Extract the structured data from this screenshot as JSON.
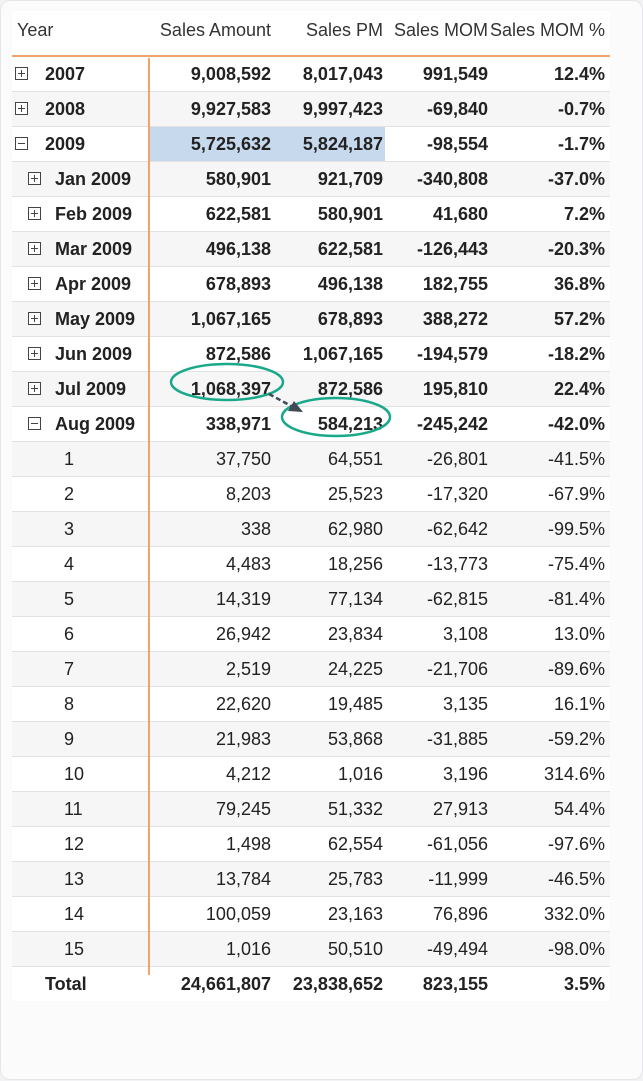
{
  "columns": [
    "Year",
    "Sales Amount",
    "Sales PM",
    "Sales MOM",
    "Sales MOM %"
  ],
  "rows": [
    {
      "label": "2007",
      "sales": "9,008,592",
      "pm": "8,017,043",
      "mom": "991,549",
      "pct": "12.4%",
      "level": 0,
      "bold": true,
      "expander": "plus"
    },
    {
      "label": "2008",
      "sales": "9,927,583",
      "pm": "9,997,423",
      "mom": "-69,840",
      "pct": "-0.7%",
      "level": 0,
      "bold": true,
      "expander": "plus"
    },
    {
      "label": "2009",
      "sales": "5,725,632",
      "pm": "5,824,187",
      "mom": "-98,554",
      "pct": "-1.7%",
      "level": 0,
      "bold": true,
      "expander": "minus",
      "selected": true
    },
    {
      "label": "Jan 2009",
      "sales": "580,901",
      "pm": "921,709",
      "mom": "-340,808",
      "pct": "-37.0%",
      "level": 1,
      "bold": true,
      "expander": "plus"
    },
    {
      "label": "Feb 2009",
      "sales": "622,581",
      "pm": "580,901",
      "mom": "41,680",
      "pct": "7.2%",
      "level": 1,
      "bold": true,
      "expander": "plus"
    },
    {
      "label": "Mar 2009",
      "sales": "496,138",
      "pm": "622,581",
      "mom": "-126,443",
      "pct": "-20.3%",
      "level": 1,
      "bold": true,
      "expander": "plus"
    },
    {
      "label": "Apr 2009",
      "sales": "678,893",
      "pm": "496,138",
      "mom": "182,755",
      "pct": "36.8%",
      "level": 1,
      "bold": true,
      "expander": "plus"
    },
    {
      "label": "May 2009",
      "sales": "1,067,165",
      "pm": "678,893",
      "mom": "388,272",
      "pct": "57.2%",
      "level": 1,
      "bold": true,
      "expander": "plus"
    },
    {
      "label": "Jun 2009",
      "sales": "872,586",
      "pm": "1,067,165",
      "mom": "-194,579",
      "pct": "-18.2%",
      "level": 1,
      "bold": true,
      "expander": "plus"
    },
    {
      "label": "Jul 2009",
      "sales": "1,068,397",
      "pm": "872,586",
      "mom": "195,810",
      "pct": "22.4%",
      "level": 1,
      "bold": true,
      "expander": "plus"
    },
    {
      "label": "Aug 2009",
      "sales": "338,971",
      "pm": "584,213",
      "mom": "-245,242",
      "pct": "-42.0%",
      "level": 1,
      "bold": true,
      "expander": "minus"
    },
    {
      "label": "1",
      "sales": "37,750",
      "pm": "64,551",
      "mom": "-26,801",
      "pct": "-41.5%",
      "level": 2,
      "bold": false
    },
    {
      "label": "2",
      "sales": "8,203",
      "pm": "25,523",
      "mom": "-17,320",
      "pct": "-67.9%",
      "level": 2,
      "bold": false
    },
    {
      "label": "3",
      "sales": "338",
      "pm": "62,980",
      "mom": "-62,642",
      "pct": "-99.5%",
      "level": 2,
      "bold": false
    },
    {
      "label": "4",
      "sales": "4,483",
      "pm": "18,256",
      "mom": "-13,773",
      "pct": "-75.4%",
      "level": 2,
      "bold": false
    },
    {
      "label": "5",
      "sales": "14,319",
      "pm": "77,134",
      "mom": "-62,815",
      "pct": "-81.4%",
      "level": 2,
      "bold": false
    },
    {
      "label": "6",
      "sales": "26,942",
      "pm": "23,834",
      "mom": "3,108",
      "pct": "13.0%",
      "level": 2,
      "bold": false
    },
    {
      "label": "7",
      "sales": "2,519",
      "pm": "24,225",
      "mom": "-21,706",
      "pct": "-89.6%",
      "level": 2,
      "bold": false
    },
    {
      "label": "8",
      "sales": "22,620",
      "pm": "19,485",
      "mom": "3,135",
      "pct": "16.1%",
      "level": 2,
      "bold": false
    },
    {
      "label": "9",
      "sales": "21,983",
      "pm": "53,868",
      "mom": "-31,885",
      "pct": "-59.2%",
      "level": 2,
      "bold": false
    },
    {
      "label": "10",
      "sales": "4,212",
      "pm": "1,016",
      "mom": "3,196",
      "pct": "314.6%",
      "level": 2,
      "bold": false
    },
    {
      "label": "11",
      "sales": "79,245",
      "pm": "51,332",
      "mom": "27,913",
      "pct": "54.4%",
      "level": 2,
      "bold": false
    },
    {
      "label": "12",
      "sales": "1,498",
      "pm": "62,554",
      "mom": "-61,056",
      "pct": "-97.6%",
      "level": 2,
      "bold": false
    },
    {
      "label": "13",
      "sales": "13,784",
      "pm": "25,783",
      "mom": "-11,999",
      "pct": "-46.5%",
      "level": 2,
      "bold": false
    },
    {
      "label": "14",
      "sales": "100,059",
      "pm": "23,163",
      "mom": "76,896",
      "pct": "332.0%",
      "level": 2,
      "bold": false
    },
    {
      "label": "15",
      "sales": "1,016",
      "pm": "50,510",
      "mom": "-49,494",
      "pct": "-98.0%",
      "level": 2,
      "bold": false
    }
  ],
  "total": {
    "label": "Total",
    "sales": "24,661,807",
    "pm": "23,838,652",
    "mom": "823,155",
    "pct": "3.5%"
  },
  "colors": {
    "accent": "#f0a36a",
    "selection": "#c7d9ec",
    "annotation": "#1aa88a",
    "arrow": "#3f4a55"
  },
  "icons": {
    "expand": "plus-box-icon",
    "collapse": "minus-box-icon"
  }
}
